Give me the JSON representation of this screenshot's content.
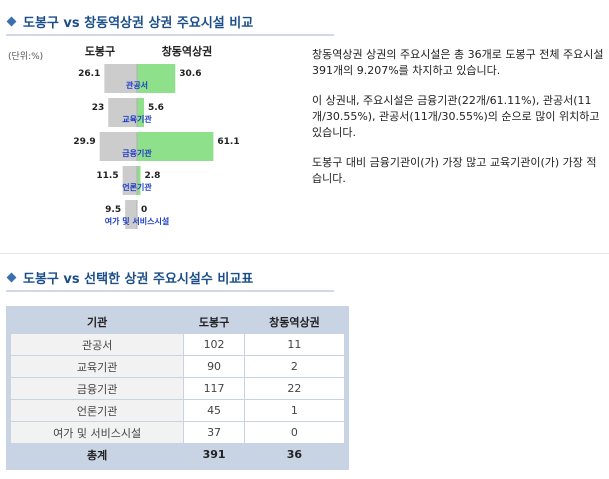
{
  "header1": "도봉구 vs 창동역상권 상권 주요시설 비교",
  "unit": "(단위:%)",
  "chart_data": {
    "type": "bar",
    "series": [
      {
        "name": "도봉구",
        "values": [
          26.1,
          23,
          29.9,
          11.5,
          9.5
        ],
        "color": "#cccccc"
      },
      {
        "name": "창동역상권",
        "values": [
          30.6,
          5.6,
          61.1,
          2.8,
          0
        ],
        "color": "#8fe08a"
      }
    ],
    "categories": [
      "관공서",
      "교육기관",
      "금융기관",
      "언론기관",
      "여가 및 서비스시설"
    ],
    "value_labels_left": [
      "26.1",
      "23",
      "29.9",
      "11.5",
      "9.5"
    ],
    "value_labels_right": [
      "30.6",
      "5.6",
      "61.1",
      "2.8",
      "0"
    ]
  },
  "description": [
    "창동역상권 상권의 주요시설은 총 36개로 도봉구 전체 주요시설 391개의 9.207%를 차지하고 있습니다.",
    "이 상권내, 주요시설은 금융기관(22개/61.11%), 관공서(11개/30.55%), 관공서(11개/30.55%)의 순으로 많이 위치하고 있습니다.",
    "도봉구 대비 금융기관이(가) 가장 많고 교육기관이(가) 가장 적습니다."
  ],
  "header2": "도봉구 vs 선택한 상권 주요시설수 비교표",
  "table": {
    "headers": [
      "기관",
      "도봉구",
      "창동역상권"
    ],
    "rows": [
      [
        "관공서",
        "102",
        "11"
      ],
      [
        "교육기관",
        "90",
        "2"
      ],
      [
        "금융기관",
        "117",
        "22"
      ],
      [
        "언론기관",
        "45",
        "1"
      ],
      [
        "여가 및 서비스시설",
        "37",
        "0"
      ]
    ],
    "total": [
      "총계",
      "391",
      "36"
    ]
  }
}
